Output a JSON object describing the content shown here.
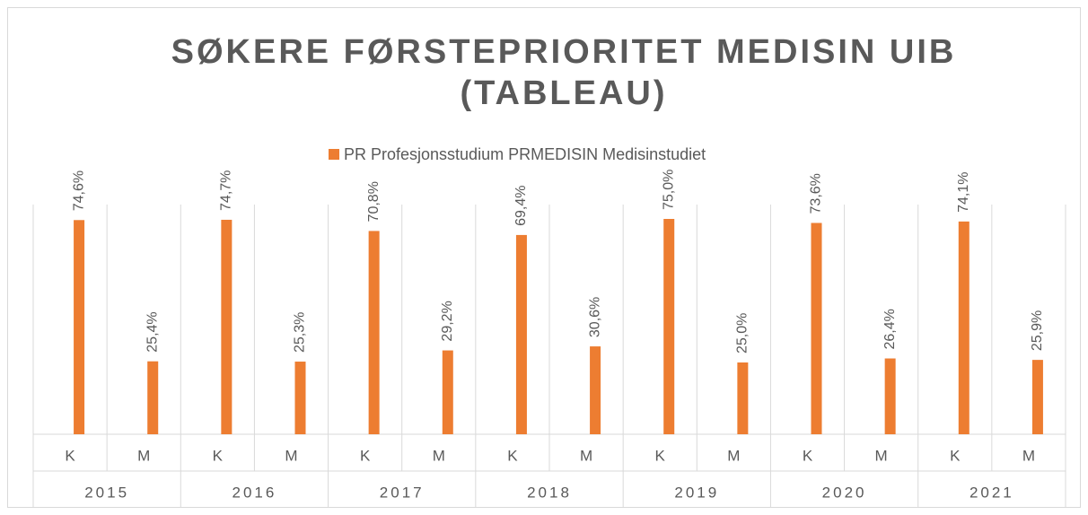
{
  "chart_data": {
    "type": "bar",
    "title": [
      "SØKERE FØRSTEPRIORITET MEDISIN UIB",
      "(TABLEAU)"
    ],
    "groups": [
      "2015",
      "2016",
      "2017",
      "2018",
      "2019",
      "2020",
      "2021"
    ],
    "categories": [
      "K",
      "M",
      "K",
      "M",
      "K",
      "M",
      "K",
      "M",
      "K",
      "M",
      "K",
      "M",
      "K",
      "M"
    ],
    "series": [
      {
        "name": "PR Profesjonsstudium PRMEDISIN Medisinstudiet",
        "color": "#ed7d31",
        "values": [
          74.6,
          25.4,
          74.7,
          25.3,
          70.8,
          29.2,
          69.4,
          30.6,
          75.0,
          25.0,
          73.6,
          26.4,
          74.1,
          25.9
        ],
        "value_labels": [
          "74,6%",
          "25,4%",
          "74,7%",
          "25,3%",
          "70,8%",
          "29,2%",
          "69,4%",
          "30,6%",
          "75,0%",
          "25,0%",
          "73,6%",
          "26,4%",
          "74,1%",
          "25,9%"
        ]
      }
    ],
    "ylim": [
      0,
      80
    ],
    "legend": "top",
    "grid": true
  }
}
